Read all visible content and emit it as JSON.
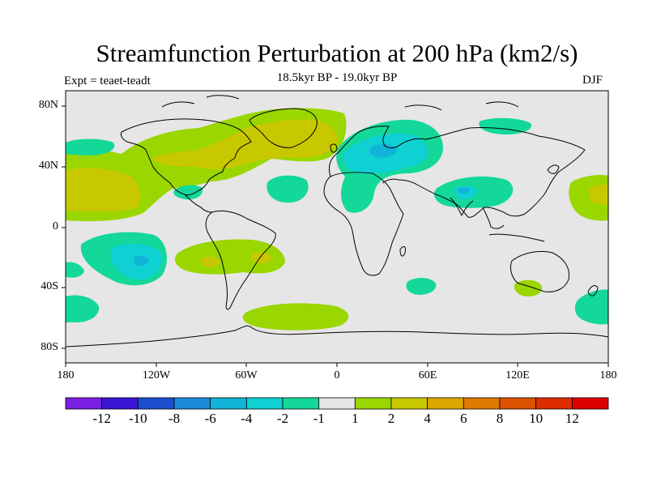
{
  "title": "Streamfunction Perturbation at 200 hPa (km2/s)",
  "subtitle": "18.5kyr BP - 19.0kyr BP",
  "experiment": "Expt = teaet-teadt",
  "season": "DJF",
  "chart_data": {
    "type": "contour_map",
    "variable": "Streamfunction Perturbation",
    "level": "200 hPa",
    "units": "km2/s",
    "projection": "cylindrical equidistant",
    "lon_range": [
      -180,
      180
    ],
    "lat_range": [
      -90,
      90
    ],
    "x_ticks": [
      {
        "lon": -180,
        "label": "180"
      },
      {
        "lon": -120,
        "label": "120W"
      },
      {
        "lon": -60,
        "label": "60W"
      },
      {
        "lon": 0,
        "label": "0"
      },
      {
        "lon": 60,
        "label": "60E"
      },
      {
        "lon": 120,
        "label": "120E"
      },
      {
        "lon": 180,
        "label": "180"
      }
    ],
    "y_ticks": [
      {
        "lat": 80,
        "label": "80N"
      },
      {
        "lat": 40,
        "label": "40N"
      },
      {
        "lat": 0,
        "label": "0"
      },
      {
        "lat": -40,
        "label": "40S"
      },
      {
        "lat": -80,
        "label": "80S"
      }
    ],
    "contour_levels": [
      -12,
      -10,
      -8,
      -6,
      -4,
      -2,
      -1,
      1,
      2,
      4,
      6,
      8,
      10,
      12
    ],
    "level_labels": [
      "-12",
      "-10",
      "-8",
      "-6",
      "-4",
      "-2",
      "-1",
      "1",
      "2",
      "4",
      "6",
      "8",
      "10",
      "12"
    ],
    "colors": [
      "#7b1fe0",
      "#3b15d4",
      "#1b4fcf",
      "#1b8bd8",
      "#12b3d8",
      "#0fd0d2",
      "#14d89a",
      "#e6e6e6",
      "#9ad600",
      "#c8c800",
      "#dca700",
      "#de7a00",
      "#dc5200",
      "#dc2d00",
      "#dc0000"
    ],
    "features": [
      {
        "name": "N Pacific-N America positive arc",
        "value_range": "2 to 4"
      },
      {
        "name": "N Atlantic positive",
        "value_range": "2 to 4"
      },
      {
        "name": "Europe negative center",
        "value_range": "-4 to -2"
      },
      {
        "name": "S Asia negative",
        "value_range": "-4 to -2"
      },
      {
        "name": "S Pacific negative",
        "value_range": "-4 to -2"
      },
      {
        "name": "S America positive",
        "value_range": "2 to 4"
      }
    ]
  }
}
